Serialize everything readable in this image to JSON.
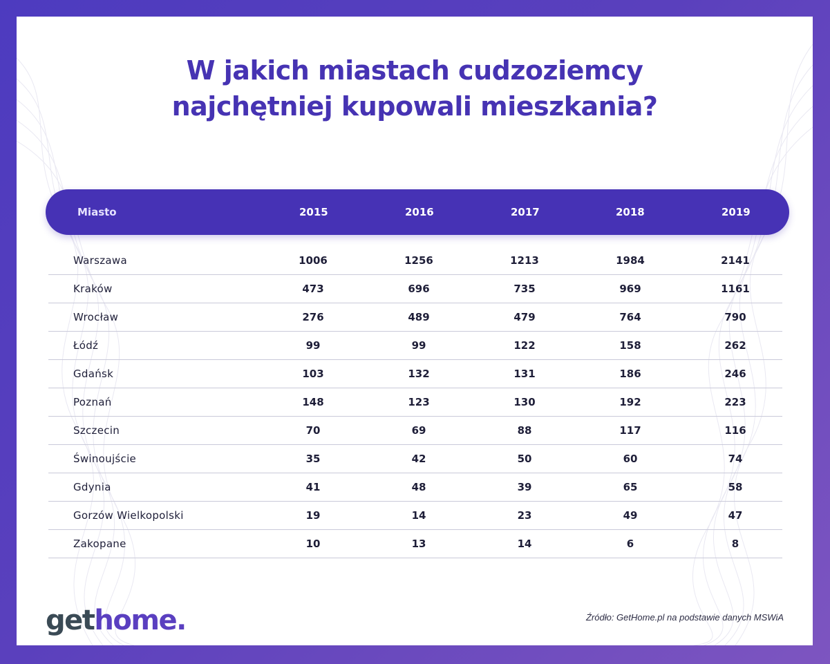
{
  "title": {
    "line1": "W jakich miastach cudzoziemcy",
    "line2": "najchętniej kupowali mieszkania?"
  },
  "chart_data": {
    "type": "table",
    "title": "W jakich miastach cudzoziemcy najchętniej kupowali mieszkania?",
    "columns": [
      "Miasto",
      "2015",
      "2016",
      "2017",
      "2018",
      "2019"
    ],
    "rows": [
      {
        "city": "Warszawa",
        "values": [
          1006,
          1256,
          1213,
          1984,
          2141
        ]
      },
      {
        "city": "Kraków",
        "values": [
          473,
          696,
          735,
          969,
          1161
        ]
      },
      {
        "city": "Wrocław",
        "values": [
          276,
          489,
          479,
          764,
          790
        ]
      },
      {
        "city": "Łódź",
        "values": [
          99,
          99,
          122,
          158,
          262
        ]
      },
      {
        "city": "Gdańsk",
        "values": [
          103,
          132,
          131,
          186,
          246
        ]
      },
      {
        "city": "Poznań",
        "values": [
          148,
          123,
          130,
          192,
          223
        ]
      },
      {
        "city": "Szczecin",
        "values": [
          70,
          69,
          88,
          117,
          116
        ]
      },
      {
        "city": "Świnoujście",
        "values": [
          35,
          42,
          50,
          60,
          74
        ]
      },
      {
        "city": "Gdynia",
        "values": [
          41,
          48,
          39,
          65,
          58
        ]
      },
      {
        "city": "Gorzów Wielkopolski",
        "values": [
          19,
          14,
          23,
          49,
          47
        ]
      },
      {
        "city": "Zakopane",
        "values": [
          10,
          13,
          14,
          6,
          8
        ]
      }
    ]
  },
  "logo": {
    "part1": "get",
    "part2": "home."
  },
  "source": "Źródło: GetHome.pl na podstawie danych MSWiA",
  "colors": {
    "brand": "#4632b5",
    "logo_dark": "#3a4a55"
  }
}
